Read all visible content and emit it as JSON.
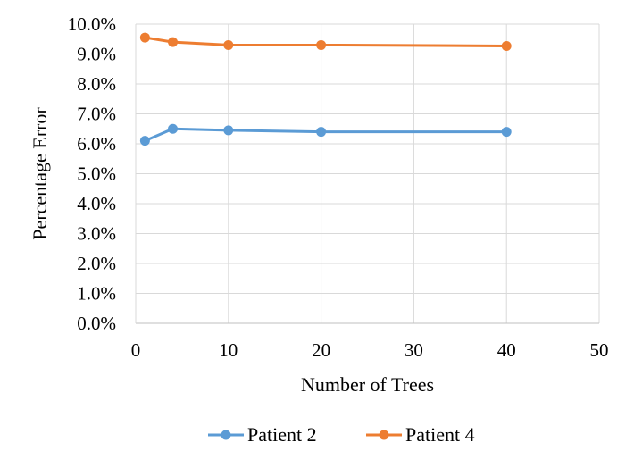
{
  "chart_data": {
    "type": "line",
    "title": "",
    "xlabel": "Number of Trees",
    "ylabel": "Percentage Error",
    "xlim": [
      0,
      50
    ],
    "ylim": [
      0.0,
      10.0
    ],
    "x_ticks": [
      0,
      10,
      20,
      30,
      40,
      50
    ],
    "x_tick_labels": [
      "0",
      "10",
      "20",
      "30",
      "40",
      "50"
    ],
    "y_ticks": [
      0,
      1,
      2,
      3,
      4,
      5,
      6,
      7,
      8,
      9,
      10
    ],
    "y_tick_labels": [
      "0.0%",
      "1.0%",
      "2.0%",
      "3.0%",
      "4.0%",
      "5.0%",
      "6.0%",
      "7.0%",
      "8.0%",
      "9.0%",
      "10.0%"
    ],
    "grid": true,
    "legend_position": "bottom",
    "series": [
      {
        "name": "Patient 2",
        "color": "#5B9BD5",
        "x": [
          1,
          4,
          10,
          20,
          40
        ],
        "y": [
          6.1,
          6.5,
          6.45,
          6.4,
          6.4
        ]
      },
      {
        "name": "Patient 4",
        "color": "#ED7D31",
        "x": [
          1,
          4,
          10,
          20,
          40
        ],
        "y": [
          9.55,
          9.4,
          9.3,
          9.3,
          9.27
        ]
      }
    ]
  }
}
